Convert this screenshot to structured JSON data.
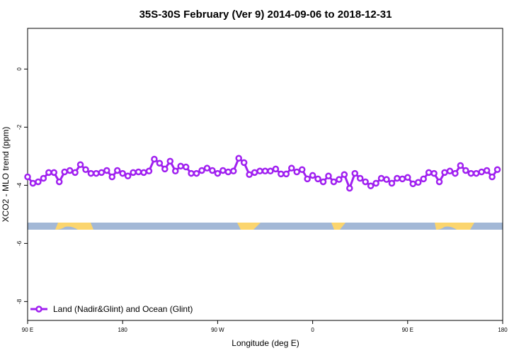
{
  "chart_data": {
    "type": "line",
    "title": "35S-30S February (Ver 9)   2014-09-06 to 2018-12-31",
    "x_label": "Longitude (deg E)",
    "y_label": "XCO2 - MLO trend (ppm)",
    "xlim": [
      90,
      540
    ],
    "ylim": [
      -8.65,
      1.4
    ],
    "xticks": [
      {
        "value": 90,
        "label": "90 E"
      },
      {
        "value": 180,
        "label": "180"
      },
      {
        "value": 270,
        "label": "90 W"
      },
      {
        "value": 360,
        "label": "0"
      },
      {
        "value": 450,
        "label": "90 E"
      },
      {
        "value": 540,
        "label": "180"
      }
    ],
    "yticks": [
      -8,
      -6,
      -4,
      -2,
      0
    ],
    "legend": "bottom-left",
    "x": [
      90,
      95,
      100,
      105,
      110,
      115,
      120,
      125,
      130,
      135,
      140,
      145,
      150,
      155,
      160,
      165,
      170,
      175,
      180,
      185,
      190,
      195,
      200,
      205,
      210,
      215,
      220,
      225,
      230,
      235,
      240,
      245,
      250,
      255,
      260,
      265,
      270,
      275,
      280,
      285,
      290,
      295,
      300,
      305,
      310,
      315,
      320,
      325,
      330,
      335,
      340,
      345,
      350,
      355,
      360,
      365,
      370,
      375,
      380,
      385,
      390,
      395,
      400,
      405,
      410,
      415,
      420,
      425,
      430,
      435,
      440,
      445,
      450,
      455,
      460,
      465,
      470,
      475,
      480,
      485,
      490,
      495,
      500,
      505,
      510,
      515,
      520,
      525,
      530,
      535
    ],
    "series": [
      {
        "name": "Land (Nadir&Glint) and Ocean (Glint)",
        "color": "#a020f0",
        "values": [
          -3.71,
          -3.93,
          -3.88,
          -3.76,
          -3.56,
          -3.56,
          -3.88,
          -3.54,
          -3.49,
          -3.56,
          -3.29,
          -3.46,
          -3.59,
          -3.59,
          -3.56,
          -3.49,
          -3.71,
          -3.49,
          -3.59,
          -3.68,
          -3.56,
          -3.54,
          -3.56,
          -3.51,
          -3.1,
          -3.24,
          -3.44,
          -3.17,
          -3.51,
          -3.34,
          -3.37,
          -3.59,
          -3.59,
          -3.49,
          -3.41,
          -3.49,
          -3.59,
          -3.49,
          -3.54,
          -3.51,
          -3.07,
          -3.22,
          -3.63,
          -3.56,
          -3.51,
          -3.51,
          -3.51,
          -3.44,
          -3.61,
          -3.61,
          -3.41,
          -3.54,
          -3.46,
          -3.78,
          -3.66,
          -3.78,
          -3.88,
          -3.68,
          -3.88,
          -3.8,
          -3.63,
          -4.1,
          -3.59,
          -3.76,
          -3.88,
          -4.02,
          -3.93,
          -3.76,
          -3.8,
          -3.93,
          -3.76,
          -3.78,
          -3.73,
          -3.95,
          -3.9,
          -3.78,
          -3.56,
          -3.59,
          -3.88,
          -3.56,
          -3.51,
          -3.59,
          -3.32,
          -3.49,
          -3.59,
          -3.59,
          -3.54,
          -3.49,
          -3.71,
          -3.46
        ]
      }
    ]
  }
}
